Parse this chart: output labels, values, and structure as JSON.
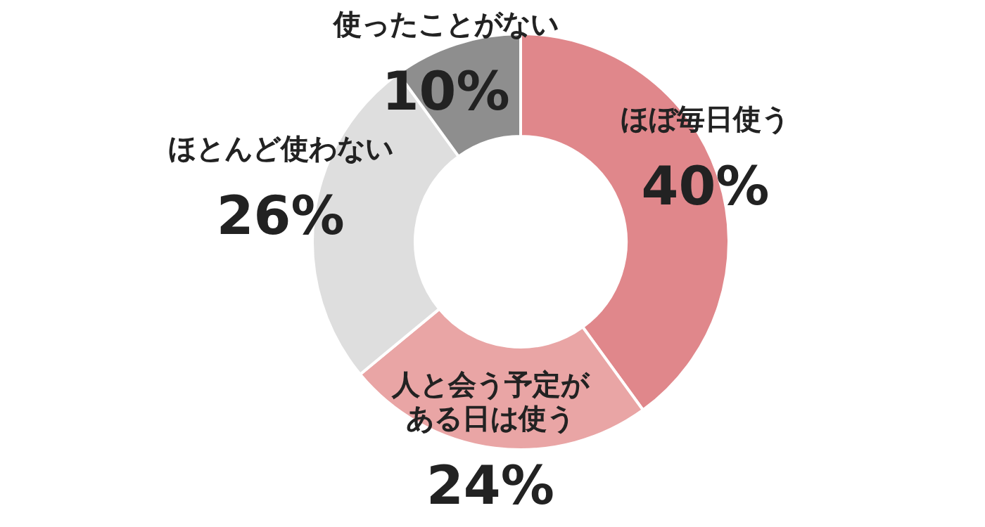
{
  "chart_data": {
    "type": "donut",
    "categories": [
      "ほぼ毎日使う",
      "人と会う予定がある日は使う",
      "ほとんど使わない",
      "使ったことがない"
    ],
    "values": [
      40,
      24,
      26,
      10
    ],
    "value_labels": [
      "40%",
      "24%",
      "26%",
      "10%"
    ],
    "colors": [
      "#e0878b",
      "#e9a5a5",
      "#dedede",
      "#8e8e8e"
    ]
  }
}
